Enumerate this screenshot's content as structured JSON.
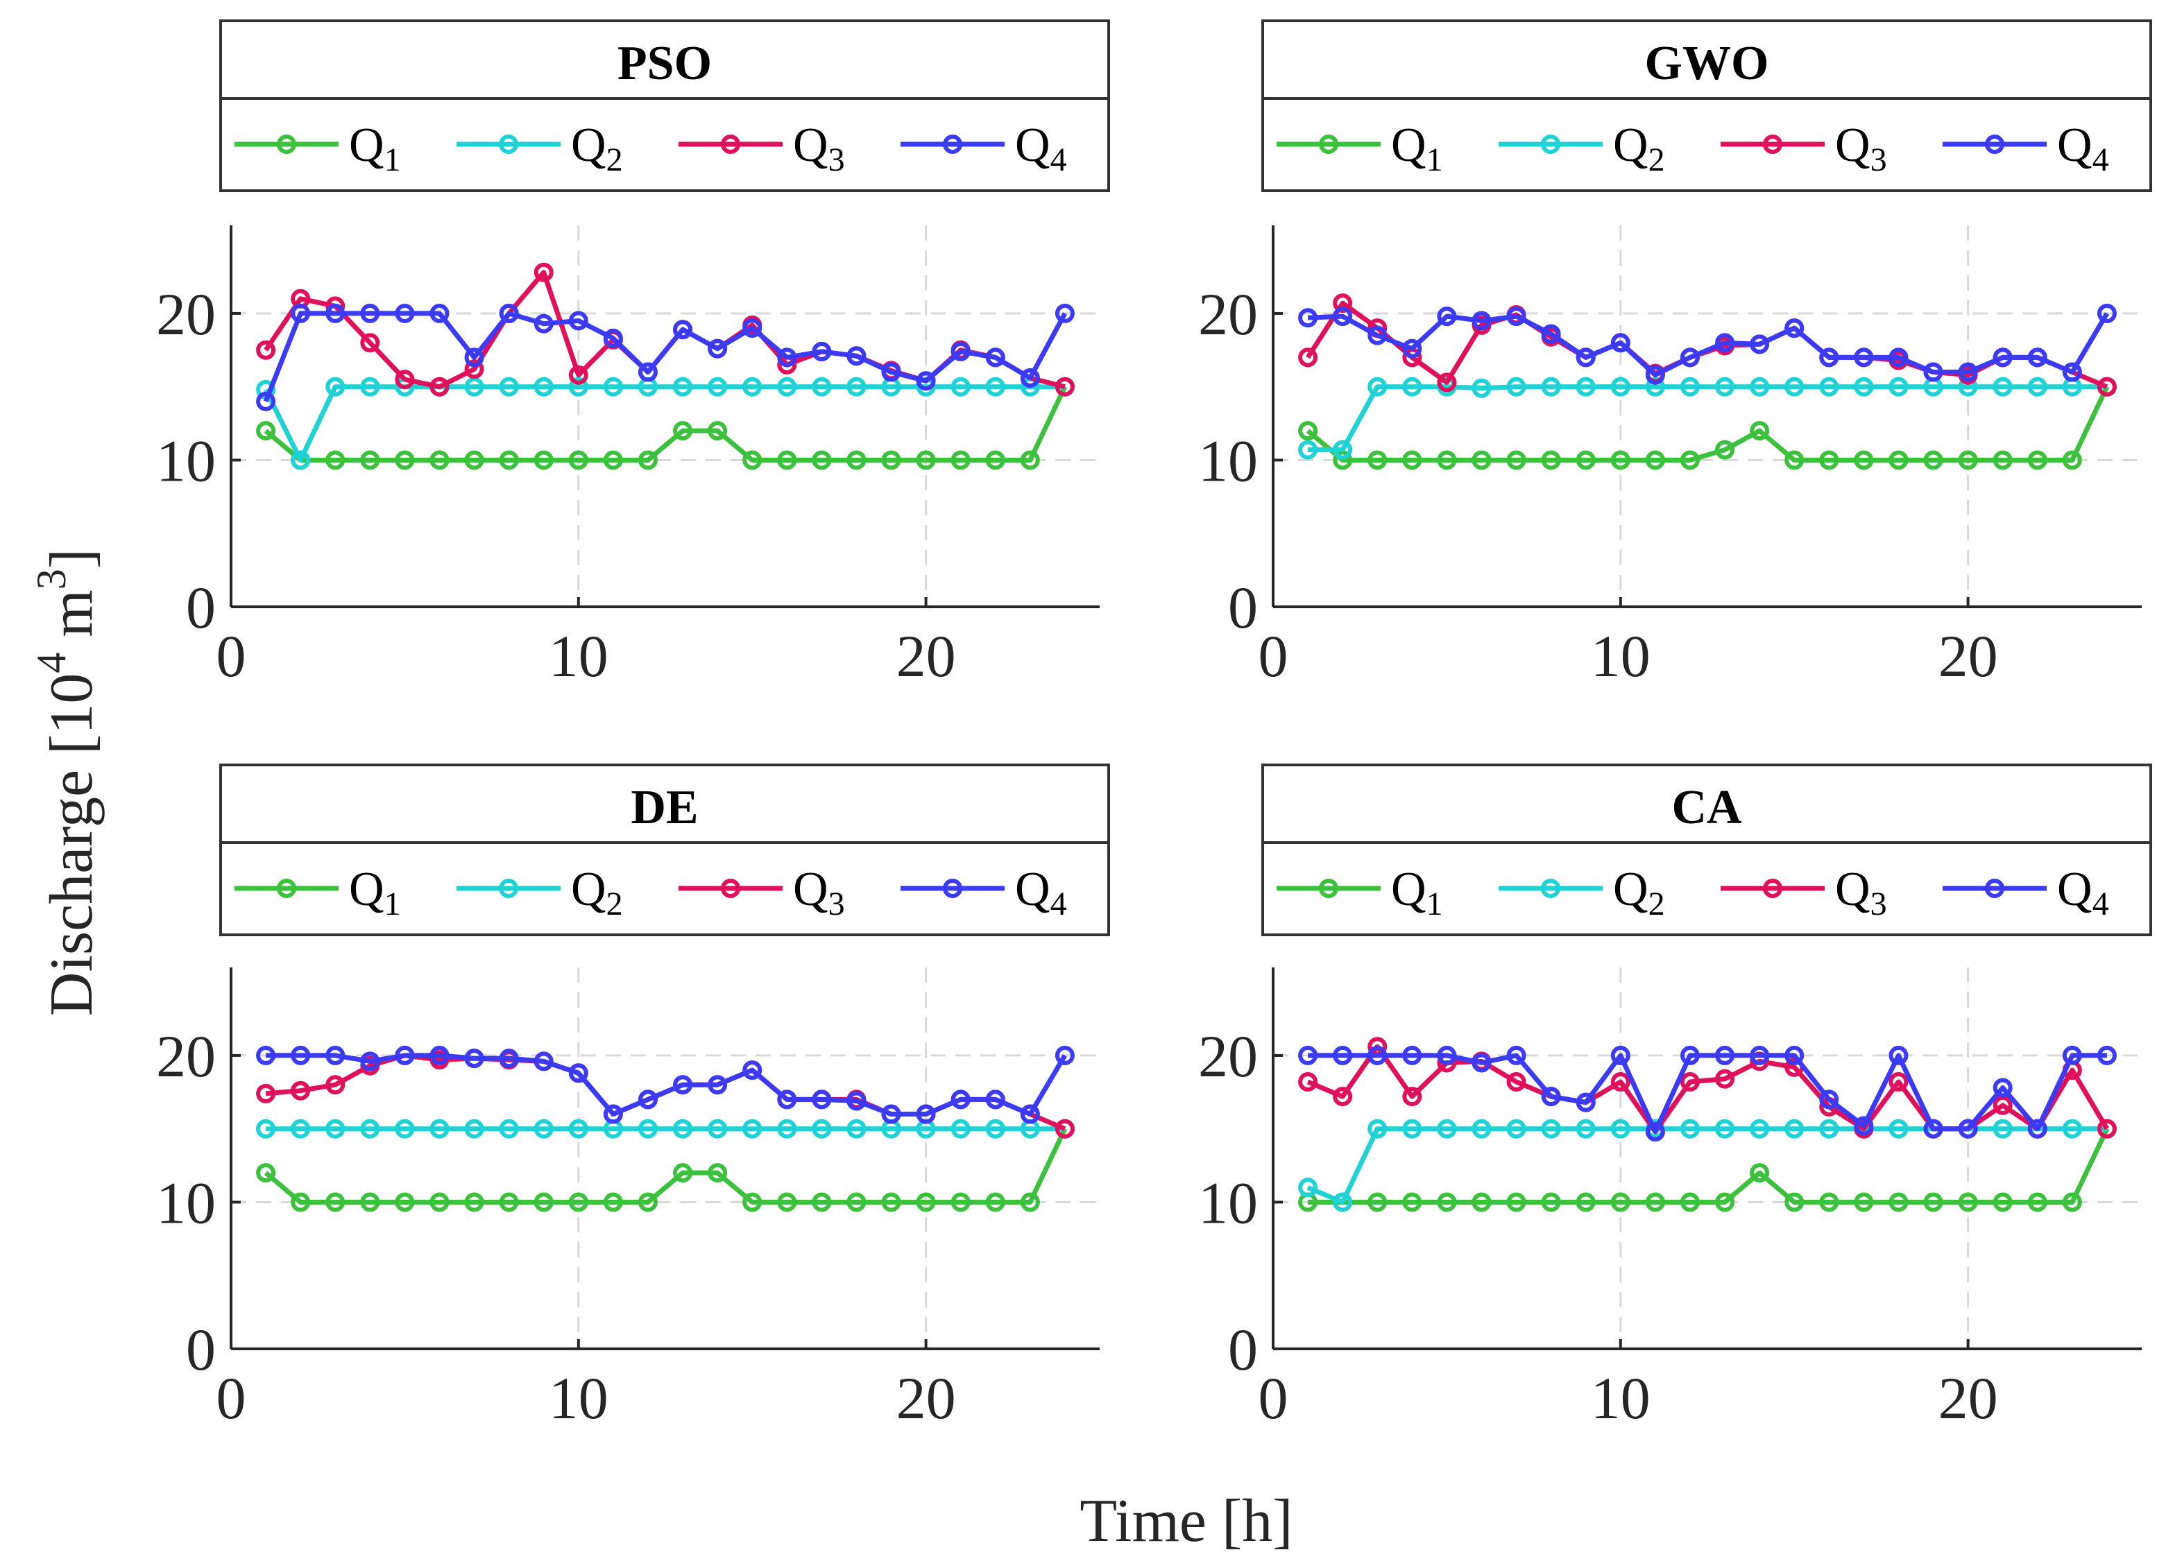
{
  "chart_data": {
    "type": "line",
    "xlabel": "Time [h]",
    "ylabel": "Discharge  [10",
    "ylabel_sup": "4",
    "ylabel_unit": "  m",
    "ylabel_unit_sup": "3",
    "ylabel_close": "]",
    "xlim": [
      0,
      25
    ],
    "ylim": [
      0,
      26
    ],
    "xticks": [
      "0",
      "10",
      "20"
    ],
    "yticks": [
      "0",
      "10",
      "20"
    ],
    "grid": true,
    "legend_placement": "top box",
    "series_colors": [
      "#3cc13c",
      "#1ed2d6",
      "#e0105a",
      "#3b3bf5"
    ],
    "legend_labels": [
      {
        "base": "Q",
        "sub": "1"
      },
      {
        "base": "Q",
        "sub": "2"
      },
      {
        "base": "Q",
        "sub": "3"
      },
      {
        "base": "Q",
        "sub": "4"
      }
    ],
    "panels": [
      {
        "title": "PSO",
        "x": [
          1,
          2,
          3,
          4,
          5,
          6,
          7,
          8,
          9,
          10,
          11,
          12,
          13,
          14,
          15,
          16,
          17,
          18,
          19,
          20,
          21,
          22,
          23,
          24
        ],
        "series": [
          {
            "name": "Q1",
            "values": [
              12,
              10,
              10,
              10,
              10,
              10,
              10,
              10,
              10,
              10,
              10,
              10,
              12,
              12,
              10,
              10,
              10,
              10,
              10,
              10,
              10,
              10,
              10,
              15
            ]
          },
          {
            "name": "Q2",
            "values": [
              14.8,
              10,
              15,
              15,
              15,
              15,
              15,
              15,
              15,
              15,
              15,
              15,
              15,
              15,
              15,
              15,
              15,
              15,
              15,
              15,
              15,
              15,
              15,
              15
            ]
          },
          {
            "name": "Q3",
            "values": [
              17.5,
              21,
              20.5,
              18,
              15.5,
              15,
              16.2,
              20,
              22.8,
              15.8,
              18.2,
              16,
              18.9,
              17.6,
              19.2,
              16.5,
              17.4,
              17.1,
              16.1,
              15.4,
              17.5,
              17,
              15.6,
              15
            ]
          },
          {
            "name": "Q4",
            "values": [
              14,
              20,
              20,
              20,
              20,
              20,
              17,
              20,
              19.3,
              19.5,
              18.3,
              16,
              18.9,
              17.6,
              19,
              17,
              17.4,
              17.1,
              16,
              15.4,
              17.4,
              17,
              15.6,
              20
            ]
          }
        ]
      },
      {
        "title": "GWO",
        "x": [
          1,
          2,
          3,
          4,
          5,
          6,
          7,
          8,
          9,
          10,
          11,
          12,
          13,
          14,
          15,
          16,
          17,
          18,
          19,
          20,
          21,
          22,
          23,
          24
        ],
        "series": [
          {
            "name": "Q1",
            "values": [
              12,
              10,
              10,
              10,
              10,
              10,
              10,
              10,
              10,
              10,
              10,
              10,
              10.7,
              12,
              10,
              10,
              10,
              10,
              10,
              10,
              10,
              10,
              10,
              15
            ]
          },
          {
            "name": "Q2",
            "values": [
              10.7,
              10.7,
              15,
              15,
              15,
              14.9,
              15,
              15,
              15,
              15,
              15,
              15,
              15,
              15,
              15,
              15,
              15,
              15,
              15,
              15,
              15,
              15,
              15,
              15
            ]
          },
          {
            "name": "Q3",
            "values": [
              17,
              20.7,
              19,
              17,
              15.3,
              19.2,
              19.9,
              18.4,
              17,
              18,
              15.9,
              17,
              17.8,
              17.9,
              19,
              17,
              17,
              16.8,
              16,
              15.8,
              17,
              17,
              16,
              15
            ]
          },
          {
            "name": "Q4",
            "values": [
              19.7,
              19.8,
              18.5,
              17.6,
              19.8,
              19.5,
              19.8,
              18.6,
              17,
              18,
              15.8,
              17,
              18,
              17.9,
              19,
              17,
              17,
              17,
              16,
              16,
              17,
              17,
              16,
              20
            ]
          }
        ]
      },
      {
        "title": "DE",
        "x": [
          1,
          2,
          3,
          4,
          5,
          6,
          7,
          8,
          9,
          10,
          11,
          12,
          13,
          14,
          15,
          16,
          17,
          18,
          19,
          20,
          21,
          22,
          23,
          24
        ],
        "series": [
          {
            "name": "Q1",
            "values": [
              12,
              10,
              10,
              10,
              10,
              10,
              10,
              10,
              10,
              10,
              10,
              10,
              12,
              12,
              10,
              10,
              10,
              10,
              10,
              10,
              10,
              10,
              10,
              15
            ]
          },
          {
            "name": "Q2",
            "values": [
              15,
              15,
              15,
              15,
              15,
              15,
              15,
              15,
              15,
              15,
              15,
              15,
              15,
              15,
              15,
              15,
              15,
              15,
              15,
              15,
              15,
              15,
              15,
              15
            ]
          },
          {
            "name": "Q3",
            "values": [
              17.4,
              17.6,
              18,
              19.3,
              20,
              19.7,
              19.8,
              19.7,
              19.6,
              18.8,
              16,
              17,
              18,
              18,
              19,
              17,
              17,
              17,
              16,
              16,
              17,
              17,
              16,
              15
            ]
          },
          {
            "name": "Q4",
            "values": [
              20,
              20,
              20,
              19.6,
              20,
              20,
              19.8,
              19.8,
              19.6,
              18.8,
              16,
              17,
              18,
              18,
              19,
              17,
              17,
              16.9,
              16,
              16,
              17,
              17,
              16,
              20
            ]
          }
        ]
      },
      {
        "title": "CA",
        "x": [
          1,
          2,
          3,
          4,
          5,
          6,
          7,
          8,
          9,
          10,
          11,
          12,
          13,
          14,
          15,
          16,
          17,
          18,
          19,
          20,
          21,
          22,
          23,
          24
        ],
        "series": [
          {
            "name": "Q1",
            "values": [
              10,
              10,
              10,
              10,
              10,
              10,
              10,
              10,
              10,
              10,
              10,
              10,
              10,
              12,
              10,
              10,
              10,
              10,
              10,
              10,
              10,
              10,
              10,
              15
            ]
          },
          {
            "name": "Q2",
            "values": [
              11,
              10,
              15,
              15,
              15,
              15,
              15,
              15,
              15,
              15,
              15,
              15,
              15,
              15,
              15,
              15,
              15,
              15,
              15,
              15,
              15,
              15,
              15,
              15
            ]
          },
          {
            "name": "Q3",
            "values": [
              18.2,
              17.2,
              20.6,
              17.2,
              19.5,
              19.6,
              18.2,
              17.2,
              16.8,
              18.2,
              14.8,
              18.2,
              18.4,
              19.6,
              19.2,
              16.5,
              15,
              18.2,
              15,
              15,
              16.6,
              15,
              19,
              15
            ]
          },
          {
            "name": "Q4",
            "values": [
              20,
              20,
              20,
              20,
              20,
              19.5,
              20,
              17.2,
              16.8,
              20,
              14.8,
              20,
              20,
              20,
              20,
              17,
              15.2,
              20,
              15,
              15,
              17.8,
              15,
              20,
              20
            ]
          }
        ]
      }
    ]
  }
}
